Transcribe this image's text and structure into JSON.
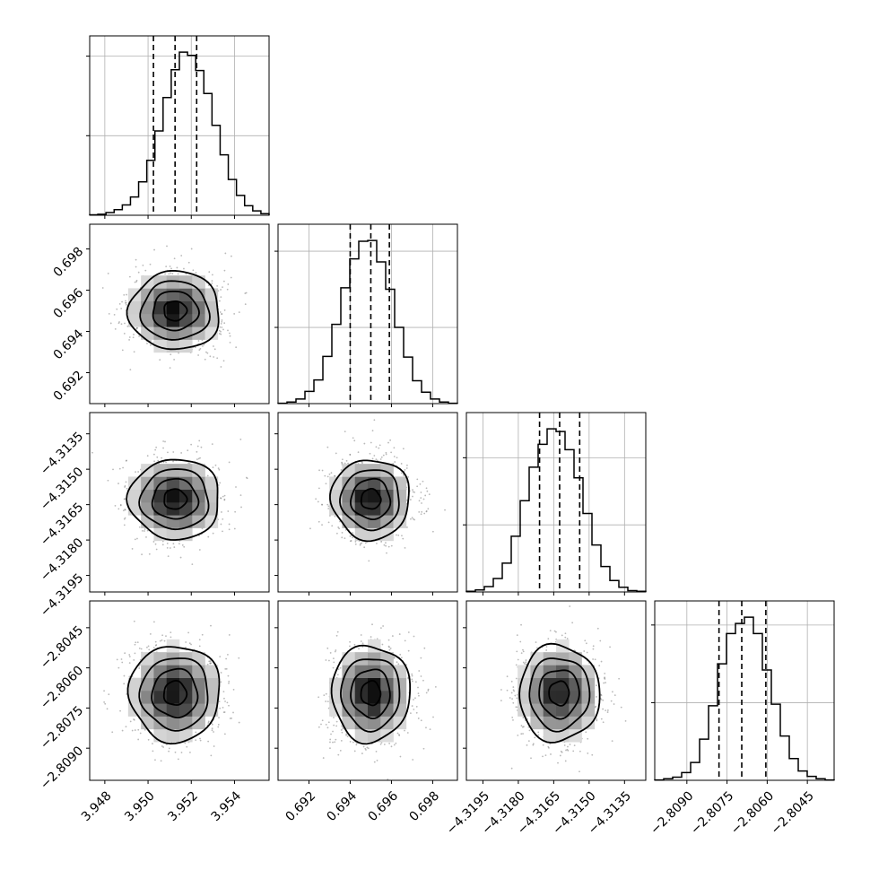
{
  "chart_data": {
    "type": "corner",
    "parameters": [
      {
        "range": [
          3.9473,
          3.9556
        ],
        "mean": 3.95125,
        "sigma": 0.00105,
        "ticks": [
          3.948,
          3.95,
          3.952,
          3.954
        ],
        "tick_labels": [
          "3.948",
          "3.950",
          "3.952",
          "3.954"
        ],
        "quantiles": [
          3.95025,
          3.95125,
          3.95225
        ],
        "hist": [
          5,
          12,
          34,
          70,
          130,
          230,
          420,
          690,
          1060,
          1480,
          1830,
          2050,
          2010,
          1820,
          1530,
          1130,
          760,
          450,
          250,
          120,
          55,
          20
        ]
      },
      {
        "range": [
          0.6905,
          0.6992
        ],
        "mean": 0.695,
        "sigma": 0.00095,
        "ticks": [
          0.692,
          0.694,
          0.696,
          0.698
        ],
        "tick_labels": [
          "0.692",
          "0.694",
          "0.696",
          "0.698"
        ],
        "quantiles": [
          0.694,
          0.695,
          0.6959
        ],
        "hist": [
          5,
          20,
          60,
          160,
          310,
          620,
          1040,
          1520,
          1900,
          2130,
          2140,
          1860,
          1500,
          1000,
          610,
          300,
          150,
          60,
          20,
          5
        ]
      },
      {
        "range": [
          -4.3202,
          -4.3126
        ],
        "mean": -4.31627,
        "sigma": 0.00085,
        "ticks": [
          -4.3195,
          -4.318,
          -4.3165,
          -4.315,
          -4.3135
        ],
        "tick_labels": [
          "−4.3195",
          "−4.3180",
          "−4.3165",
          "−4.3150",
          "−4.3135"
        ],
        "quantiles": [
          -4.3171,
          -4.31625,
          -4.3154
        ],
        "hist": [
          10,
          30,
          80,
          200,
          430,
          830,
          1360,
          1860,
          2200,
          2430,
          2390,
          2120,
          1700,
          1170,
          700,
          380,
          170,
          70,
          20,
          10
        ]
      },
      {
        "range": [
          -2.8102,
          -2.8035
        ],
        "mean": -2.80695,
        "sigma": 0.0009,
        "ticks": [
          -2.809,
          -2.8075,
          -2.806,
          -2.8045
        ],
        "tick_labels": [
          "−2.8090",
          "−2.8075",
          "−2.8060",
          "−2.8045"
        ],
        "quantiles": [
          -2.8078,
          -2.80695,
          -2.80605
        ],
        "hist": [
          5,
          20,
          40,
          100,
          230,
          530,
          960,
          1500,
          1890,
          2020,
          2100,
          1890,
          1420,
          980,
          570,
          280,
          120,
          50,
          20,
          5
        ]
      }
    ],
    "correlations": [
      {
        "pair": [
          1,
          0
        ],
        "rho": 0.0
      },
      {
        "pair": [
          2,
          0
        ],
        "rho": 0.0
      },
      {
        "pair": [
          2,
          1
        ],
        "rho": 0.0
      },
      {
        "pair": [
          3,
          0
        ],
        "rho": 0.0
      },
      {
        "pair": [
          3,
          1
        ],
        "rho": 0.0
      },
      {
        "pair": [
          3,
          2
        ],
        "rho": 0.0
      }
    ],
    "contour_levels_sigma": [
      0.5,
      1.0,
      1.5,
      2.0
    ],
    "grid": true
  }
}
